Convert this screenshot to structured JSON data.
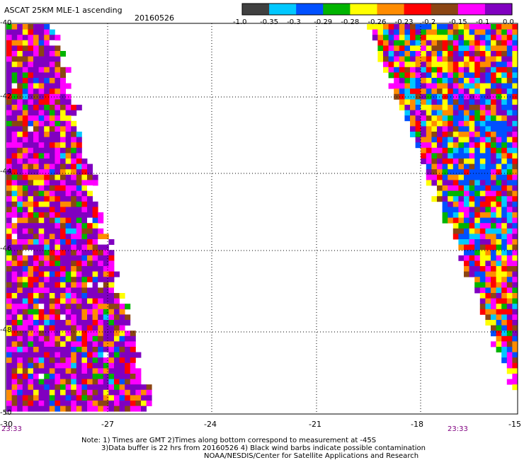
{
  "header": {
    "title": "ASCAT 25KM MLE-1 ascending",
    "date": "20160526"
  },
  "colorbar": {
    "colors": [
      "#404040",
      "#00c8ff",
      "#0050ff",
      "#00b400",
      "#ffff00",
      "#ff8c00",
      "#ff0000",
      "#8b4513",
      "#ff00ff",
      "#8000c0"
    ],
    "labels": [
      "-1.0",
      "-0.35",
      "-0.3",
      "-0.29",
      "-0.28",
      "-0.26",
      "-0.23",
      "-0.2",
      "-0.15",
      "-0.1",
      "0.0"
    ]
  },
  "axes": {
    "y_labels": [
      "-40",
      "-42",
      "-44",
      "-46",
      "-48",
      "-50"
    ],
    "x_labels": [
      "-30",
      "-27",
      "-24",
      "-21",
      "-18",
      "-15"
    ]
  },
  "times": {
    "left": "23:33",
    "right": "23:33"
  },
  "notes": {
    "line1": "Note: 1) Times are GMT 2)Times along bottom correspond to measurement at -45S",
    "line2": "3)Data buffer is 22 hrs from 20160526 4) Black wind barbs indicate possible contamination",
    "line3": "NOAA/NESDIS/Center for Satellite Applications and Research"
  }
}
